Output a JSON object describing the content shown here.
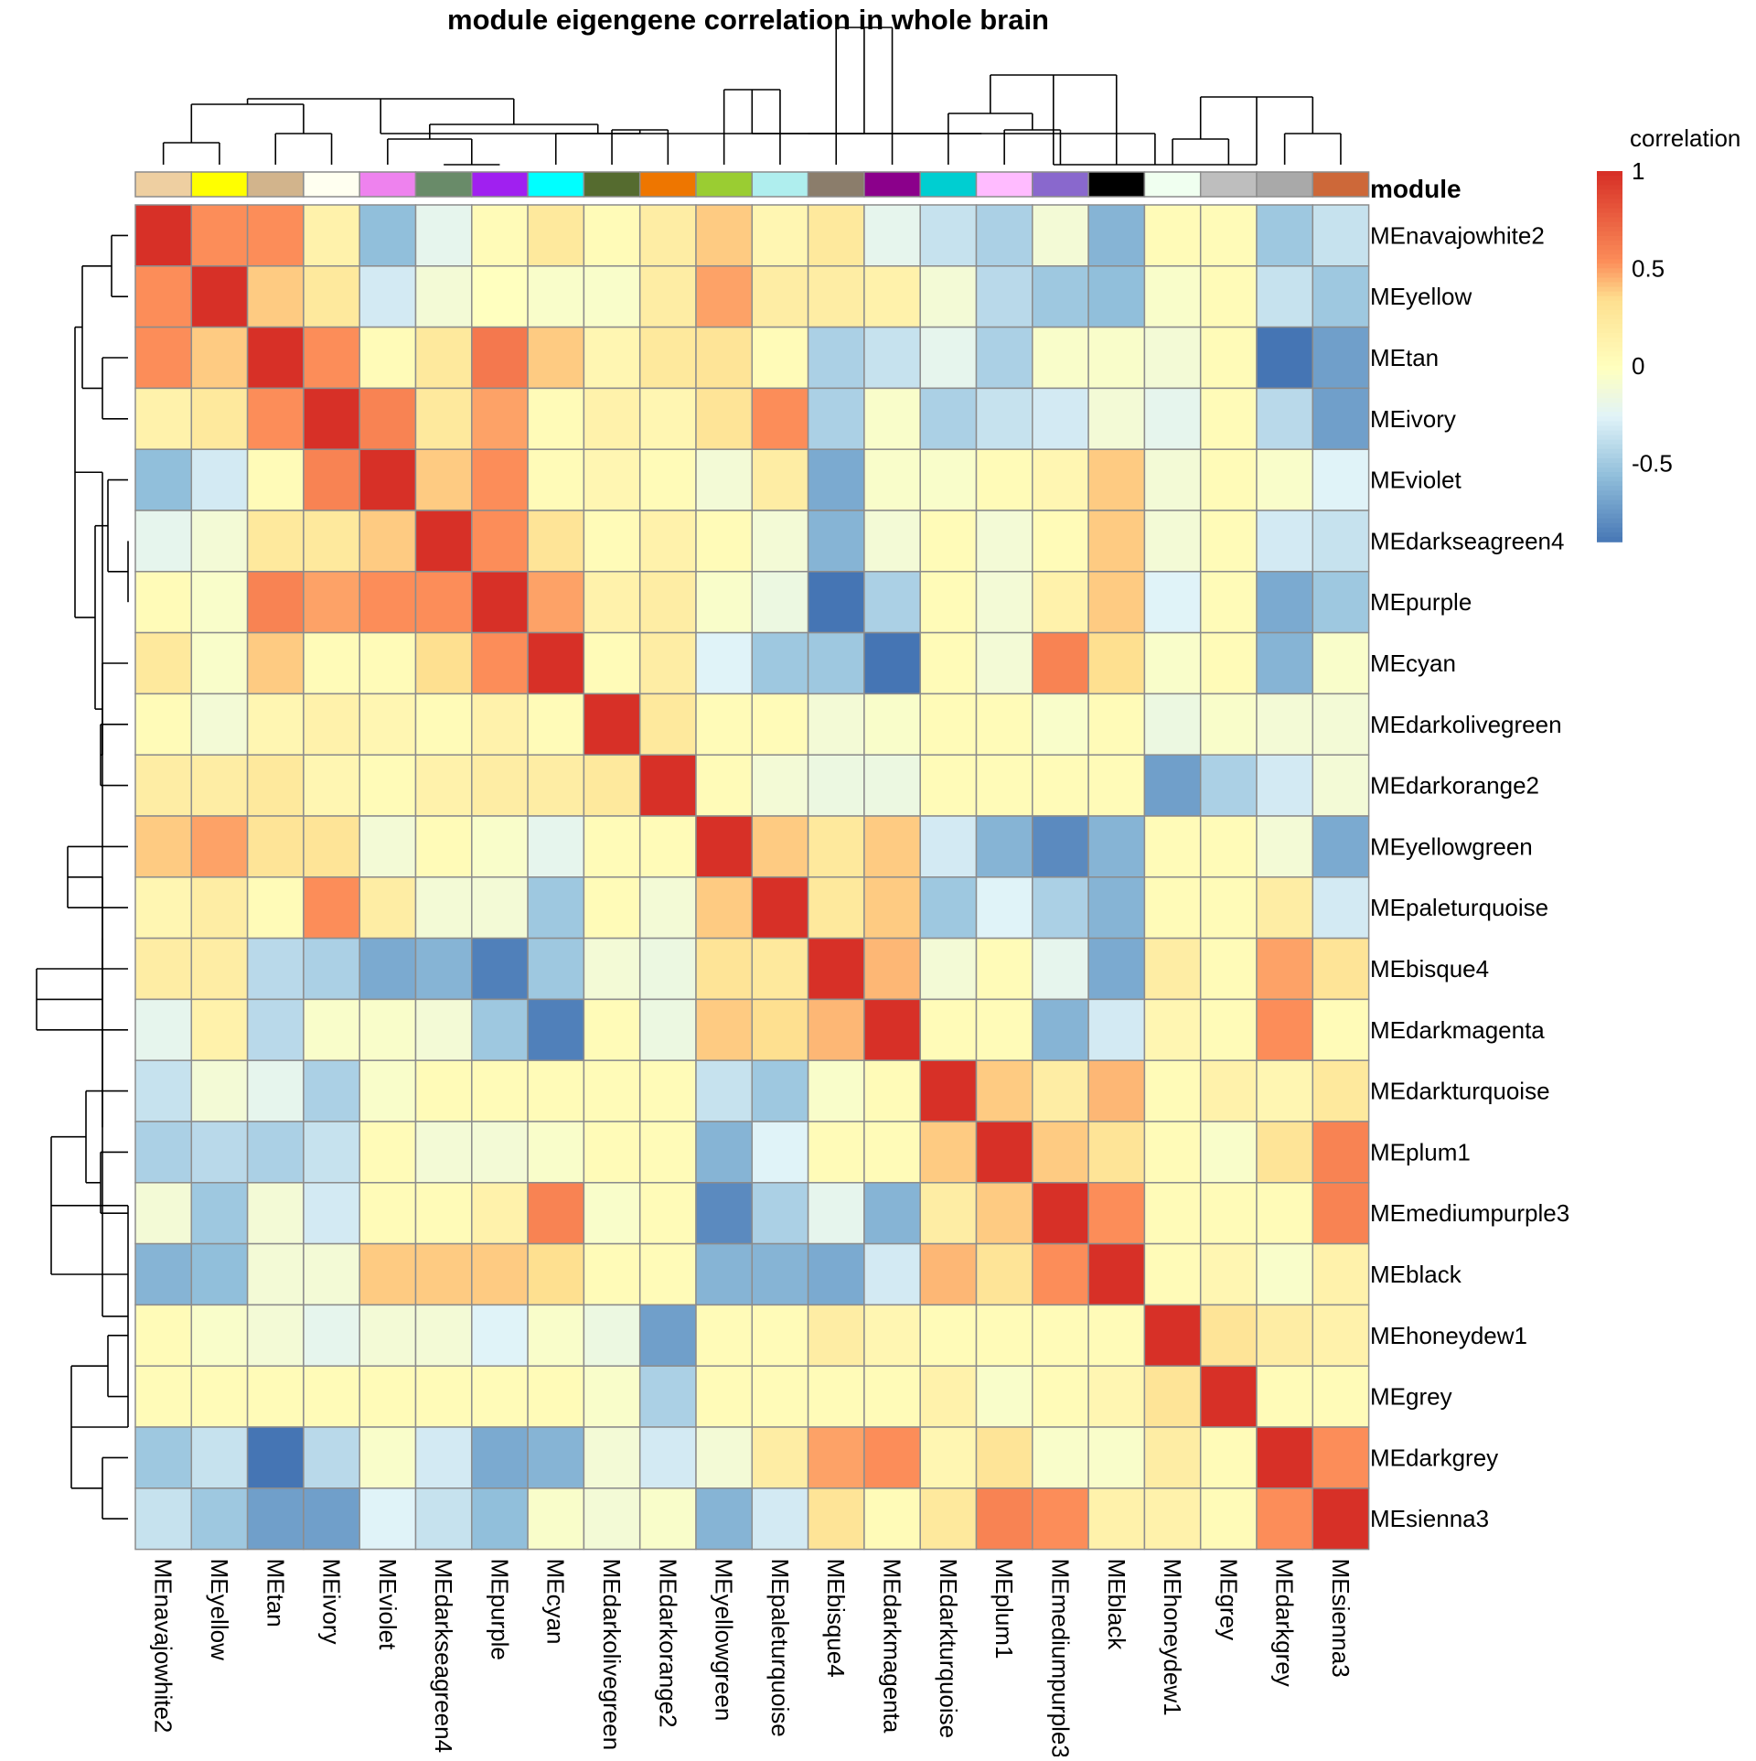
{
  "chart_data": {
    "type": "heatmap",
    "title": "module eigengene correlation in whole brain",
    "annotation_label": "module",
    "legend": {
      "title": "correlation",
      "ticks": [
        "1",
        "0.5",
        "0",
        "-0.5"
      ],
      "tick_values": [
        1,
        0.5,
        0,
        -0.5
      ],
      "range": [
        -0.9,
        1
      ],
      "placement": "right"
    },
    "color_stops": [
      {
        "v": -0.9,
        "c": "#4575B4"
      },
      {
        "v": -0.55,
        "c": "#91BFDB"
      },
      {
        "v": -0.25,
        "c": "#E0F3F8"
      },
      {
        "v": 0,
        "c": "#FFFFBF"
      },
      {
        "v": 0.35,
        "c": "#FEE090"
      },
      {
        "v": 0.55,
        "c": "#FC8D59"
      },
      {
        "v": 1,
        "c": "#D73027"
      }
    ],
    "modules": [
      "MEnavajowhite2",
      "MEyellow",
      "MEtan",
      "MEivory",
      "MEviolet",
      "MEdarkseagreen4",
      "MEpurple",
      "MEcyan",
      "MEdarkolivegreen",
      "MEdarkorange2",
      "MEyellowgreen",
      "MEpaleturquoise",
      "MEbisque4",
      "MEdarkmagenta",
      "MEdarkturquoise",
      "MEplum1",
      "MEmediumpurple3",
      "MEblack",
      "MEhoneydew1",
      "MEgrey",
      "MEdarkgrey",
      "MEsienna3"
    ],
    "module_colors": [
      "#EECFA1",
      "#FFFF00",
      "#D2B48C",
      "#FFFFF0",
      "#EE82EE",
      "#698B69",
      "#A020F0",
      "#00FFFF",
      "#556B2F",
      "#EE7600",
      "#9ACD32",
      "#AFEEEE",
      "#8B7D6B",
      "#8B008B",
      "#00CED1",
      "#FFBBFF",
      "#8968CD",
      "#000000",
      "#F0FFF0",
      "#BEBEBE",
      "#A9A9A9",
      "#CD6839"
    ],
    "values": [
      [
        1,
        0.55,
        0.55,
        0.15,
        -0.55,
        -0.2,
        0.05,
        0.25,
        0.05,
        0.2,
        0.4,
        0.1,
        0.25,
        -0.2,
        -0.35,
        -0.45,
        -0.1,
        -0.6,
        0.05,
        0.05,
        -0.5,
        -0.35
      ],
      [
        0.55,
        1,
        0.4,
        0.25,
        -0.3,
        -0.1,
        0,
        -0.05,
        -0.05,
        0.2,
        0.5,
        0.2,
        0.2,
        0.15,
        -0.1,
        -0.4,
        -0.5,
        -0.55,
        -0.05,
        0.05,
        -0.35,
        -0.5
      ],
      [
        0.55,
        0.4,
        1,
        0.55,
        0.05,
        0.25,
        0.65,
        0.4,
        0.1,
        0.25,
        0.3,
        0.05,
        -0.45,
        -0.35,
        -0.2,
        -0.45,
        -0.05,
        -0.05,
        -0.1,
        0.05,
        -0.9,
        -0.7
      ],
      [
        0.15,
        0.25,
        0.55,
        1,
        0.6,
        0.25,
        0.5,
        0.05,
        0.15,
        0.1,
        0.3,
        0.55,
        -0.45,
        -0.05,
        -0.45,
        -0.35,
        -0.3,
        -0.1,
        -0.2,
        0.05,
        -0.4,
        -0.7
      ],
      [
        -0.55,
        -0.3,
        0.05,
        0.6,
        1,
        0.4,
        0.55,
        0.05,
        0.1,
        0.05,
        -0.1,
        0.2,
        -0.65,
        -0.05,
        -0.05,
        0.05,
        0.1,
        0.4,
        -0.1,
        0.05,
        -0.05,
        -0.25
      ],
      [
        -0.2,
        -0.1,
        0.25,
        0.25,
        0.4,
        1,
        0.55,
        0.3,
        0.05,
        0.15,
        0.05,
        -0.1,
        -0.6,
        -0.1,
        0.05,
        -0.1,
        0.05,
        0.4,
        -0.1,
        0.05,
        -0.3,
        -0.35
      ],
      [
        0.05,
        -0.05,
        0.6,
        0.5,
        0.55,
        0.55,
        1,
        0.5,
        0.15,
        0.2,
        -0.05,
        -0.15,
        -0.9,
        -0.45,
        0.05,
        -0.1,
        0.15,
        0.4,
        -0.25,
        0.05,
        -0.65,
        -0.5
      ],
      [
        0.25,
        -0.05,
        0.4,
        0.05,
        0.05,
        0.35,
        0.55,
        1,
        0.05,
        0.2,
        -0.25,
        -0.5,
        -0.5,
        -0.9,
        0.05,
        -0.1,
        0.6,
        0.35,
        -0.05,
        0.05,
        -0.6,
        -0.05
      ],
      [
        0.05,
        -0.1,
        0.1,
        0.15,
        0.1,
        0.05,
        0.15,
        0.05,
        1,
        0.25,
        0.05,
        0.05,
        -0.1,
        -0.05,
        0.05,
        0.05,
        -0.05,
        0.05,
        -0.15,
        -0.05,
        -0.1,
        -0.1
      ],
      [
        0.2,
        0.2,
        0.25,
        0.1,
        0.05,
        0.15,
        0.2,
        0.2,
        0.25,
        1,
        0.05,
        -0.1,
        -0.15,
        -0.15,
        0.05,
        0.05,
        0.05,
        0.05,
        -0.7,
        -0.45,
        -0.3,
        -0.1
      ],
      [
        0.4,
        0.5,
        0.3,
        0.3,
        -0.1,
        0.05,
        -0.05,
        -0.2,
        0.05,
        0.05,
        1,
        0.4,
        0.25,
        0.4,
        -0.3,
        -0.6,
        -0.8,
        -0.6,
        0.05,
        0.05,
        -0.1,
        -0.65
      ],
      [
        0.1,
        0.2,
        0.05,
        0.55,
        0.2,
        -0.1,
        -0.1,
        -0.5,
        0.05,
        -0.1,
        0.4,
        1,
        0.25,
        0.4,
        -0.5,
        -0.25,
        -0.45,
        -0.6,
        0.05,
        0.05,
        0.2,
        -0.3
      ],
      [
        0.2,
        0.2,
        -0.4,
        -0.45,
        -0.65,
        -0.6,
        -0.85,
        -0.5,
        -0.1,
        -0.15,
        0.3,
        0.25,
        1,
        0.45,
        -0.1,
        0.05,
        -0.2,
        -0.65,
        0.2,
        0.05,
        0.5,
        0.3
      ],
      [
        -0.2,
        0.15,
        -0.4,
        -0.05,
        -0.05,
        -0.1,
        -0.5,
        -0.85,
        0.05,
        -0.15,
        0.4,
        0.35,
        0.45,
        1,
        0.05,
        0.05,
        -0.6,
        -0.3,
        0.1,
        0.05,
        0.55,
        0.05
      ],
      [
        -0.35,
        -0.1,
        -0.2,
        -0.45,
        -0.05,
        0.05,
        0.05,
        0.05,
        0.05,
        0.05,
        -0.35,
        -0.5,
        -0.05,
        0.05,
        1,
        0.4,
        0.2,
        0.45,
        0.05,
        0.15,
        0.1,
        0.25
      ],
      [
        -0.45,
        -0.4,
        -0.45,
        -0.35,
        0.05,
        -0.1,
        -0.1,
        -0.05,
        0.05,
        0.05,
        -0.6,
        -0.25,
        0.05,
        0.05,
        0.4,
        1,
        0.4,
        0.3,
        0.05,
        -0.05,
        0.3,
        0.6
      ],
      [
        -0.1,
        -0.5,
        -0.1,
        -0.3,
        0.05,
        0.05,
        0.15,
        0.6,
        -0.05,
        0.05,
        -0.8,
        -0.45,
        -0.2,
        -0.6,
        0.2,
        0.4,
        1,
        0.55,
        0.05,
        0.05,
        0.05,
        0.6
      ],
      [
        -0.6,
        -0.55,
        -0.1,
        -0.1,
        0.4,
        0.4,
        0.4,
        0.35,
        0.05,
        0.05,
        -0.6,
        -0.6,
        -0.65,
        -0.3,
        0.45,
        0.3,
        0.55,
        1,
        0.05,
        0.1,
        -0.05,
        0.15
      ],
      [
        0.05,
        -0.05,
        -0.1,
        -0.2,
        -0.1,
        -0.1,
        -0.25,
        -0.05,
        -0.15,
        -0.7,
        0.05,
        0.05,
        0.2,
        0.1,
        0.05,
        0.05,
        0.05,
        0.05,
        1,
        0.3,
        0.2,
        0.15
      ],
      [
        0.05,
        0.05,
        0.05,
        0.05,
        0.05,
        0.05,
        0.05,
        0.05,
        -0.05,
        -0.45,
        0.05,
        0.05,
        0.05,
        0.05,
        0.15,
        -0.05,
        0.05,
        0.1,
        0.3,
        1,
        0.05,
        0.05
      ],
      [
        -0.5,
        -0.35,
        -0.9,
        -0.4,
        -0.05,
        -0.3,
        -0.65,
        -0.6,
        -0.1,
        -0.3,
        -0.1,
        0.2,
        0.5,
        0.55,
        0.1,
        0.3,
        -0.05,
        -0.05,
        0.2,
        0.05,
        1,
        0.55
      ],
      [
        -0.35,
        -0.5,
        -0.7,
        -0.7,
        -0.25,
        -0.35,
        -0.55,
        -0.05,
        -0.1,
        -0.05,
        -0.6,
        -0.3,
        0.3,
        0.05,
        0.25,
        0.6,
        0.55,
        0.15,
        0.15,
        0.05,
        0.55,
        1
      ]
    ]
  }
}
